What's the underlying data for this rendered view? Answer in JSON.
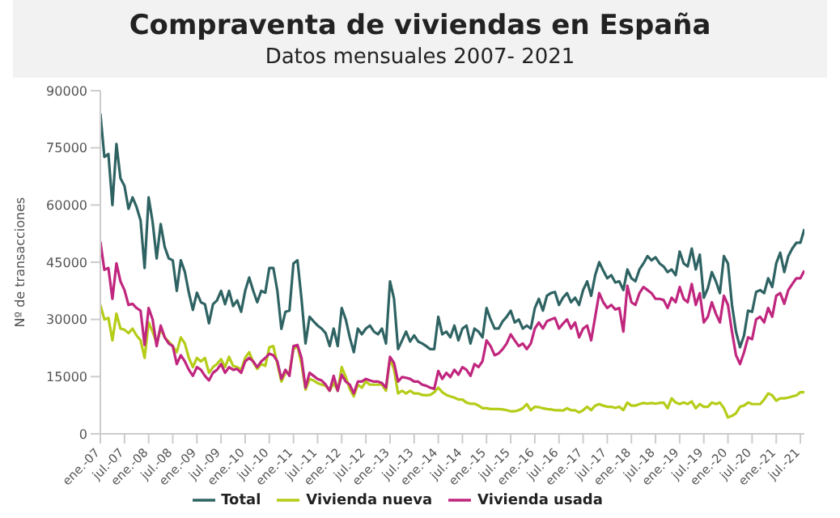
{
  "chart_data": {
    "type": "line",
    "title": "Compraventa de viviendas en España",
    "subtitle": "Datos mensuales 2007- 2021",
    "ylabel": "Nº de transacciones",
    "categories": [
      "ene.-07",
      null,
      null,
      null,
      null,
      null,
      "jul.-07",
      null,
      null,
      null,
      null,
      null,
      "ene.-08",
      null,
      null,
      null,
      null,
      null,
      "jul.-08",
      null,
      null,
      null,
      null,
      null,
      "ene.-09",
      null,
      null,
      null,
      null,
      null,
      "jul.-09",
      null,
      null,
      null,
      null,
      null,
      "ene.-10",
      null,
      null,
      null,
      null,
      null,
      "jul.-10",
      null,
      null,
      null,
      null,
      null,
      "ene.-11",
      null,
      null,
      null,
      null,
      null,
      "jul.-11",
      null,
      null,
      null,
      null,
      null,
      "ene.-12",
      null,
      null,
      null,
      null,
      null,
      "jul.-12",
      null,
      null,
      null,
      null,
      null,
      "ene.-13",
      null,
      null,
      null,
      null,
      null,
      "jul.-13",
      null,
      null,
      null,
      null,
      null,
      "ene.-14",
      null,
      null,
      null,
      null,
      null,
      "jul.-14",
      null,
      null,
      null,
      null,
      null,
      "ene.-15",
      null,
      null,
      null,
      null,
      null,
      "jul.-15",
      null,
      null,
      null,
      null,
      null,
      "ene.-16",
      null,
      null,
      null,
      null,
      null,
      "jul.-16",
      null,
      null,
      null,
      null,
      null,
      "ene.-17",
      null,
      null,
      null,
      null,
      null,
      "jul.-17",
      null,
      null,
      null,
      null,
      null,
      "ene.-18",
      null,
      null,
      null,
      null,
      null,
      "jul.-18",
      null,
      null,
      null,
      null,
      null,
      "ene.-19",
      null,
      null,
      null,
      null,
      null,
      "jul.-19",
      null,
      null,
      null,
      null,
      null,
      "ene.-20",
      null,
      null,
      null,
      null,
      null,
      "jul.-20",
      null,
      null,
      null,
      null,
      null,
      "ene.-21",
      null,
      null,
      null,
      null,
      null,
      "jul.-21",
      null
    ],
    "series": [
      {
        "name": "Vivienda nueva",
        "color": "#b5cc18",
        "values": [
          33800,
          30000,
          30400,
          24500,
          31500,
          27600,
          27300,
          26400,
          27600,
          25800,
          24500,
          19900,
          29200,
          26800,
          23700,
          27600,
          25300,
          24200,
          23000,
          21400,
          25300,
          23700,
          19900,
          17500,
          19900,
          19000,
          19900,
          16000,
          17500,
          18300,
          19600,
          17500,
          20200,
          17800,
          17500,
          16800,
          19900,
          21400,
          18800,
          17000,
          18300,
          17800,
          22700,
          23000,
          18300,
          13700,
          16000,
          16000,
          22200,
          23000,
          18300,
          11600,
          14400,
          14000,
          13300,
          12900,
          12600,
          11300,
          13300,
          11300,
          17500,
          14900,
          11800,
          9800,
          12900,
          12100,
          13700,
          12900,
          12900,
          12900,
          12900,
          11300,
          19900,
          16800,
          10600,
          11300,
          10600,
          11300,
          10600,
          10600,
          10200,
          10100,
          10200,
          10900,
          12100,
          10900,
          10200,
          9800,
          9500,
          9000,
          9000,
          8200,
          7900,
          7900,
          7400,
          6700,
          6700,
          6500,
          6500,
          6500,
          6400,
          6200,
          5900,
          5900,
          6200,
          6700,
          7800,
          6200,
          7100,
          7000,
          6700,
          6500,
          6400,
          6200,
          6200,
          6100,
          6700,
          6200,
          6200,
          5600,
          6200,
          7100,
          6200,
          7400,
          7800,
          7400,
          7100,
          7100,
          6800,
          7100,
          6200,
          8200,
          7400,
          7400,
          7800,
          8100,
          7900,
          8100,
          7900,
          8100,
          8200,
          6700,
          9300,
          8200,
          7800,
          8200,
          7800,
          8500,
          6700,
          7800,
          7100,
          7100,
          8200,
          7800,
          8200,
          6700,
          4300,
          4700,
          5400,
          7100,
          7400,
          8200,
          7800,
          7800,
          7800,
          9000,
          10600,
          10100,
          8700,
          9300,
          9300,
          9500,
          9800,
          10100,
          10900,
          10900
        ]
      },
      {
        "name": "Vivienda usada",
        "color": "#c0267e",
        "values": [
          50400,
          43000,
          43500,
          35400,
          44700,
          40000,
          37700,
          33800,
          34100,
          33000,
          32300,
          23300,
          33000,
          30000,
          23000,
          28400,
          25300,
          23700,
          23000,
          18300,
          20600,
          19000,
          16800,
          15200,
          17500,
          16800,
          15200,
          14000,
          16000,
          16800,
          18300,
          16000,
          17500,
          16800,
          17000,
          16000,
          19000,
          19900,
          19000,
          17500,
          19000,
          19900,
          21000,
          20600,
          19000,
          14400,
          16800,
          15200,
          23000,
          23300,
          19900,
          12100,
          16000,
          15200,
          14400,
          14000,
          12900,
          11300,
          15200,
          11300,
          15500,
          13700,
          12900,
          10600,
          13700,
          13700,
          14400,
          14000,
          13700,
          13700,
          13300,
          12100,
          20200,
          18600,
          13700,
          14900,
          14700,
          14400,
          13700,
          13700,
          12900,
          12600,
          12100,
          11800,
          16500,
          14400,
          16000,
          14900,
          16800,
          15500,
          17500,
          16800,
          15200,
          18300,
          17500,
          19100,
          24500,
          23000,
          20600,
          21100,
          22200,
          23700,
          26100,
          24500,
          23000,
          23700,
          22200,
          23700,
          27600,
          29200,
          27600,
          29500,
          30000,
          30400,
          27600,
          28900,
          30000,
          27600,
          29200,
          25300,
          27600,
          28400,
          24500,
          30700,
          36900,
          34500,
          33000,
          33800,
          32600,
          33000,
          26800,
          38800,
          34500,
          33800,
          36900,
          38500,
          37700,
          36900,
          35400,
          35400,
          35100,
          33000,
          35700,
          34500,
          38500,
          35400,
          34500,
          39300,
          33800,
          36900,
          29200,
          30700,
          34500,
          31500,
          29200,
          36200,
          33800,
          26800,
          20600,
          18300,
          21400,
          25300,
          24800,
          30000,
          30700,
          29200,
          33000,
          30700,
          36200,
          36900,
          34100,
          37700,
          39300,
          40800,
          40800,
          42800
        ]
      },
      {
        "name": "Total",
        "color": "#2f6363",
        "values": [
          84000,
          72600,
          73400,
          60000,
          76000,
          67000,
          65000,
          59000,
          62000,
          59500,
          56000,
          43500,
          62000,
          55500,
          46000,
          55000,
          49000,
          46000,
          45500,
          37500,
          45500,
          42500,
          37000,
          32500,
          37000,
          34500,
          34000,
          29000,
          34000,
          35000,
          37500,
          34000,
          37500,
          33500,
          35000,
          32000,
          37500,
          41000,
          37500,
          34500,
          37500,
          37000,
          43500,
          43500,
          37500,
          27500,
          32000,
          32300,
          44700,
          45500,
          35400,
          23700,
          30700,
          29500,
          28400,
          27600,
          26400,
          23000,
          27600,
          23000,
          33000,
          30000,
          25300,
          21400,
          27600,
          26100,
          27600,
          28400,
          26800,
          26100,
          27600,
          23700,
          40000,
          35400,
          22200,
          24500,
          26800,
          24200,
          25800,
          24200,
          23700,
          23000,
          22200,
          22200,
          30700,
          26100,
          26800,
          25300,
          28400,
          24500,
          27600,
          28400,
          23700,
          27600,
          26800,
          25300,
          33000,
          30000,
          27600,
          27600,
          29500,
          30700,
          32300,
          29200,
          30000,
          27600,
          28400,
          27600,
          33000,
          35400,
          32300,
          36200,
          36900,
          37200,
          33800,
          35700,
          36900,
          34500,
          35700,
          33800,
          37700,
          40000,
          36200,
          41600,
          45000,
          42800,
          40800,
          41600,
          39700,
          40000,
          37700,
          43100,
          40800,
          40000,
          43100,
          44700,
          46600,
          45500,
          46300,
          44700,
          43900,
          42400,
          43100,
          41600,
          47800,
          44700,
          43900,
          48600,
          43100,
          47000,
          35700,
          38200,
          42400,
          40000,
          36900,
          46600,
          44700,
          33800,
          26800,
          22700,
          25800,
          32300,
          32000,
          37200,
          37700,
          36900,
          40800,
          38500,
          44700,
          47500,
          42400,
          46600,
          48600,
          50100,
          50100,
          53700
        ]
      }
    ],
    "ylim": [
      0,
      90000
    ],
    "yticks": [
      0,
      15000,
      30000,
      45000,
      60000,
      75000,
      90000
    ],
    "legend": "bottom"
  }
}
